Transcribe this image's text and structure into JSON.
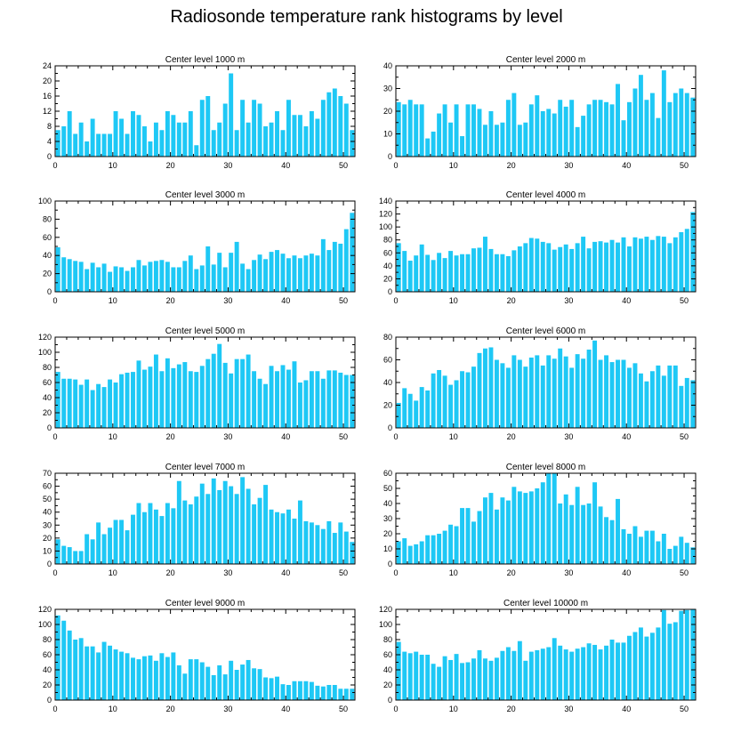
{
  "figure": {
    "title": "Radiosonde temperature rank histograms by level"
  },
  "style": {
    "bar_color": "#1ec8f5",
    "axis_color": "#000000"
  },
  "chart_data": [
    {
      "type": "bar",
      "title": "Center level 1000 m",
      "ylim": [
        0,
        24
      ],
      "yticks": [
        0,
        4,
        8,
        12,
        16,
        20,
        24
      ],
      "xlim": [
        0,
        52
      ],
      "xticks": [
        0,
        10,
        20,
        30,
        40,
        50
      ],
      "values": [
        7,
        8,
        12,
        6,
        9,
        4,
        10,
        6,
        6,
        6,
        12,
        10,
        6,
        12,
        11,
        8,
        4,
        9,
        7,
        12,
        11,
        9,
        9,
        12,
        3,
        15,
        16,
        7,
        9,
        14,
        22,
        7,
        15,
        9,
        15,
        14,
        8,
        9,
        12,
        7,
        15,
        11,
        11,
        8,
        12,
        10,
        15,
        17,
        18,
        16,
        14,
        7
      ]
    },
    {
      "type": "bar",
      "title": "Center level 2000 m",
      "ylim": [
        0,
        40
      ],
      "yticks": [
        0,
        10,
        20,
        30,
        40
      ],
      "xlim": [
        0,
        52
      ],
      "xticks": [
        0,
        10,
        20,
        30,
        40,
        50
      ],
      "values": [
        24,
        23,
        25,
        23,
        23,
        8,
        11,
        19,
        23,
        15,
        23,
        9,
        23,
        23,
        21,
        14,
        20,
        14,
        15,
        25,
        28,
        14,
        15,
        23,
        27,
        20,
        21,
        19,
        25,
        22,
        25,
        13,
        18,
        23,
        25,
        25,
        24,
        23,
        32,
        16,
        24,
        30,
        36,
        25,
        28,
        17,
        38,
        24,
        28,
        30,
        28,
        26
      ]
    },
    {
      "type": "bar",
      "title": "Center level 3000 m",
      "ylim": [
        0,
        100
      ],
      "yticks": [
        0,
        20,
        40,
        60,
        80,
        100
      ],
      "xlim": [
        0,
        52
      ],
      "xticks": [
        0,
        10,
        20,
        30,
        40,
        50
      ],
      "values": [
        49,
        38,
        36,
        34,
        33,
        25,
        32,
        27,
        31,
        22,
        28,
        27,
        23,
        27,
        35,
        29,
        33,
        34,
        35,
        33,
        27,
        27,
        34,
        40,
        25,
        29,
        50,
        30,
        43,
        27,
        43,
        55,
        31,
        25,
        35,
        41,
        36,
        44,
        46,
        42,
        37,
        40,
        37,
        40,
        42,
        40,
        58,
        46,
        55,
        53,
        69,
        87
      ]
    },
    {
      "type": "bar",
      "title": "Center level 4000 m",
      "ylim": [
        0,
        140
      ],
      "yticks": [
        0,
        20,
        40,
        60,
        80,
        100,
        120,
        140
      ],
      "xlim": [
        0,
        52
      ],
      "xticks": [
        0,
        10,
        20,
        30,
        40,
        50
      ],
      "values": [
        75,
        63,
        48,
        56,
        73,
        57,
        49,
        60,
        52,
        63,
        56,
        58,
        58,
        67,
        68,
        85,
        66,
        58,
        58,
        55,
        64,
        70,
        75,
        83,
        82,
        77,
        75,
        65,
        69,
        73,
        66,
        75,
        85,
        67,
        77,
        78,
        76,
        80,
        76,
        84,
        70,
        84,
        82,
        85,
        80,
        86,
        85,
        75,
        84,
        92,
        97,
        123
      ]
    },
    {
      "type": "bar",
      "title": "Center level 5000 m",
      "ylim": [
        0,
        120
      ],
      "yticks": [
        0,
        20,
        40,
        60,
        80,
        100,
        120
      ],
      "xlim": [
        0,
        52
      ],
      "xticks": [
        0,
        10,
        20,
        30,
        40,
        50
      ],
      "values": [
        74,
        65,
        65,
        64,
        57,
        64,
        50,
        58,
        54,
        64,
        60,
        71,
        73,
        74,
        89,
        77,
        81,
        97,
        75,
        92,
        79,
        84,
        87,
        75,
        74,
        82,
        91,
        98,
        111,
        86,
        72,
        91,
        91,
        97,
        75,
        65,
        58,
        82,
        75,
        83,
        77,
        88,
        60,
        63,
        75,
        75,
        65,
        76,
        76,
        73,
        70,
        70
      ]
    },
    {
      "type": "bar",
      "title": "Center level 6000 m",
      "ylim": [
        0,
        80
      ],
      "yticks": [
        0,
        20,
        40,
        60,
        80
      ],
      "xlim": [
        0,
        52
      ],
      "xticks": [
        0,
        10,
        20,
        30,
        40,
        50
      ],
      "values": [
        22,
        35,
        30,
        24,
        36,
        33,
        48,
        51,
        46,
        38,
        42,
        50,
        49,
        54,
        66,
        70,
        71,
        60,
        57,
        53,
        64,
        60,
        54,
        62,
        64,
        55,
        64,
        61,
        70,
        63,
        53,
        65,
        61,
        69,
        77,
        60,
        64,
        58,
        60,
        60,
        53,
        57,
        48,
        41,
        50,
        55,
        46,
        55,
        55,
        37,
        44,
        42
      ]
    },
    {
      "type": "bar",
      "title": "Center level 7000 m",
      "ylim": [
        0,
        70
      ],
      "yticks": [
        0,
        10,
        20,
        30,
        40,
        50,
        60,
        70
      ],
      "xlim": [
        0,
        52
      ],
      "xticks": [
        0,
        10,
        20,
        30,
        40,
        50
      ],
      "values": [
        19,
        14,
        13,
        10,
        10,
        23,
        19,
        32,
        23,
        28,
        34,
        34,
        26,
        38,
        47,
        40,
        47,
        42,
        37,
        47,
        43,
        64,
        49,
        46,
        52,
        62,
        54,
        66,
        57,
        64,
        60,
        54,
        67,
        58,
        46,
        51,
        61,
        42,
        40,
        39,
        42,
        35,
        49,
        33,
        32,
        30,
        27,
        33,
        24,
        32,
        25,
        17
      ]
    },
    {
      "type": "bar",
      "title": "Center level 8000 m",
      "ylim": [
        0,
        60
      ],
      "yticks": [
        0,
        10,
        20,
        30,
        40,
        50,
        60
      ],
      "xlim": [
        0,
        52
      ],
      "xticks": [
        0,
        10,
        20,
        30,
        40,
        50
      ],
      "values": [
        15,
        17,
        12,
        13,
        15,
        19,
        19,
        20,
        22,
        26,
        25,
        37,
        37,
        28,
        35,
        44,
        47,
        36,
        44,
        42,
        51,
        48,
        47,
        48,
        50,
        54,
        60,
        60,
        40,
        46,
        39,
        51,
        39,
        40,
        54,
        38,
        31,
        29,
        43,
        23,
        20,
        25,
        18,
        22,
        22,
        15,
        20,
        10,
        12,
        18,
        14,
        11
      ]
    },
    {
      "type": "bar",
      "title": "Center level 9000 m",
      "ylim": [
        0,
        120
      ],
      "yticks": [
        0,
        20,
        40,
        60,
        80,
        100,
        120
      ],
      "xlim": [
        0,
        52
      ],
      "xticks": [
        0,
        10,
        20,
        30,
        40,
        50
      ],
      "values": [
        112,
        105,
        92,
        80,
        82,
        71,
        71,
        63,
        77,
        72,
        67,
        64,
        62,
        56,
        54,
        58,
        59,
        52,
        62,
        57,
        63,
        46,
        35,
        54,
        54,
        50,
        44,
        33,
        46,
        34,
        52,
        40,
        47,
        53,
        42,
        41,
        30,
        29,
        31,
        21,
        20,
        25,
        25,
        25,
        24,
        19,
        18,
        20,
        20,
        15,
        15,
        15
      ]
    },
    {
      "type": "bar",
      "title": "Center level 10000 m",
      "ylim": [
        0,
        120
      ],
      "yticks": [
        0,
        20,
        40,
        60,
        80,
        100,
        120
      ],
      "xlim": [
        0,
        52
      ],
      "xticks": [
        0,
        10,
        20,
        30,
        40,
        50
      ],
      "values": [
        77,
        64,
        62,
        64,
        60,
        60,
        48,
        44,
        58,
        53,
        61,
        49,
        50,
        55,
        66,
        55,
        52,
        56,
        65,
        70,
        65,
        78,
        52,
        64,
        66,
        68,
        70,
        82,
        72,
        67,
        64,
        68,
        70,
        75,
        73,
        67,
        72,
        80,
        76,
        76,
        85,
        90,
        96,
        84,
        89,
        96,
        119,
        101,
        103,
        118,
        119,
        120
      ]
    }
  ]
}
